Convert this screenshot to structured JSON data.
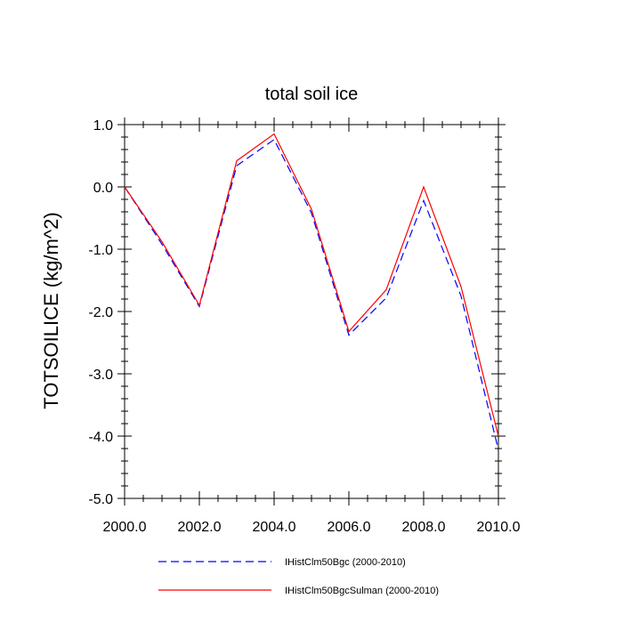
{
  "chart_data": {
    "type": "line",
    "title": "total soil ice",
    "xlabel": "",
    "ylabel": "TOTSOILICE  (kg/m^2)",
    "xlim": [
      2000,
      2010
    ],
    "ylim": [
      -5,
      1
    ],
    "x_ticks": [
      "2000.0",
      "2002.0",
      "2004.0",
      "2006.0",
      "2008.0",
      "2010.0"
    ],
    "x_tick_values": [
      2000,
      2002,
      2004,
      2006,
      2008,
      2010
    ],
    "y_ticks": [
      "1.0",
      "0.0",
      "-1.0",
      "-2.0",
      "-3.0",
      "-4.0",
      "-5.0"
    ],
    "y_tick_values": [
      1,
      0,
      -1,
      -2,
      -3,
      -4,
      -5
    ],
    "grid": false,
    "legend_position": "bottom",
    "x": [
      2000,
      2001,
      2002,
      2003,
      2004,
      2005,
      2006,
      2007,
      2008,
      2009,
      2010
    ],
    "series": [
      {
        "name": "IHistClm50Bgc (2000-2010)",
        "color": "#0000ff",
        "dash": "dashed",
        "values": [
          0.0,
          -0.92,
          -1.92,
          0.34,
          0.76,
          -0.42,
          -2.38,
          -1.78,
          -0.22,
          -1.75,
          -4.22
        ]
      },
      {
        "name": "IHistClm50BgcSulman (2000-2010)",
        "color": "#ff0000",
        "dash": "solid",
        "values": [
          0.0,
          -0.88,
          -1.9,
          0.42,
          0.85,
          -0.36,
          -2.32,
          -1.65,
          0.0,
          -1.6,
          -4.0
        ]
      }
    ]
  }
}
